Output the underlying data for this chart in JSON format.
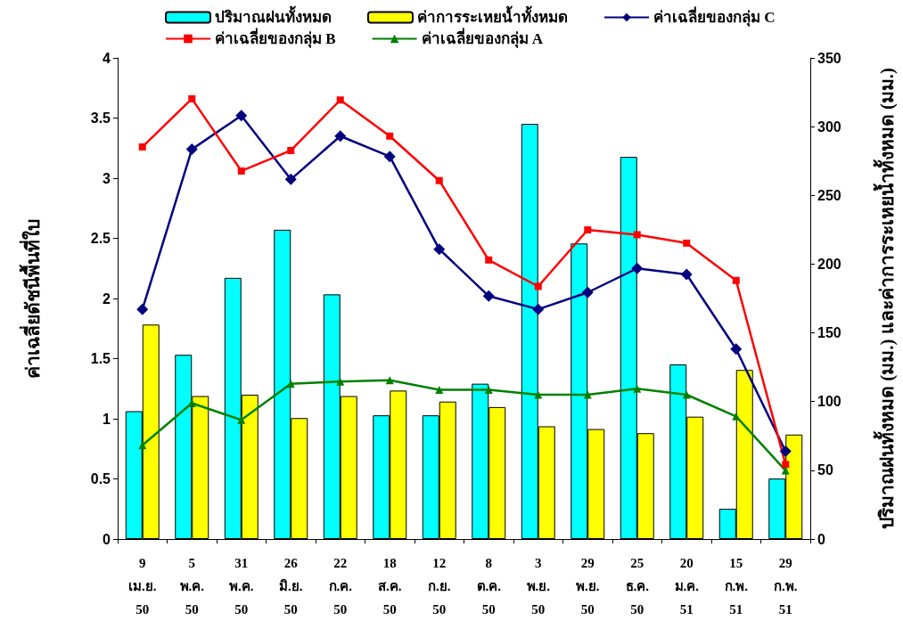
{
  "chart_data": {
    "type": "bar",
    "ylabel": "ค่าเฉลี่ยดัชนีพื้นที่ใบ",
    "y2label": "ปริมาณฝนทั้งหมด (มม.) และค่าการระเหยน้ำทั้งหมด (มม.)",
    "categories": [
      "9\nเม.ย.\n50",
      "5\nพ.ค.\n50",
      "31\nพ.ค.\n50",
      "26\nมิ.ย.\n50",
      "22\nก.ค.\n50",
      "18\nส.ค.\n50",
      "12\nก.ย.\n50",
      "8\nต.ค.\n50",
      "3\nพ.ย.\n50",
      "29\nพ.ย.\n50",
      "25\nธ.ค.\n50",
      "20\nม.ค.\n51",
      "15\nก.พ.\n51",
      "29\nก.พ.\n51"
    ],
    "series": [
      {
        "name": "ปริมาณฝนทั้งหมด",
        "axis": "y2",
        "color": "#00ffff",
        "values": [
          93,
          134,
          190,
          225,
          178,
          90,
          90,
          113,
          302,
          215,
          278,
          127,
          22,
          44
        ]
      },
      {
        "name": "ค่าการระเหยน้ำทั้งหมด",
        "axis": "y2",
        "color": "#ffff00",
        "values": [
          156,
          104,
          105,
          88,
          104,
          108,
          100,
          96,
          82,
          80,
          77,
          89,
          123,
          76
        ]
      },
      {
        "name": "ค่าเฉลี่ยของกลุ่ม C",
        "type": "line",
        "marker": "diamond",
        "color": "#000080",
        "values": [
          1.91,
          3.24,
          3.52,
          2.99,
          3.35,
          3.18,
          2.41,
          2.02,
          1.91,
          2.05,
          2.25,
          2.2,
          1.58,
          0.73
        ]
      },
      {
        "name": "ค่าเฉลี่ยของกลุ่ม B",
        "type": "line",
        "marker": "square",
        "color": "#ff0000",
        "values": [
          3.26,
          3.66,
          3.06,
          3.23,
          3.65,
          3.35,
          2.98,
          2.32,
          2.1,
          2.57,
          2.53,
          2.46,
          2.15,
          0.62
        ]
      },
      {
        "name": "ค่าเฉลี่ยของกลุ่ม A",
        "type": "line",
        "marker": "triangle",
        "color": "#008000",
        "values": [
          0.78,
          1.13,
          0.99,
          1.29,
          1.31,
          1.32,
          1.24,
          1.24,
          1.2,
          1.2,
          1.25,
          1.2,
          1.02,
          0.57
        ]
      }
    ],
    "ylim": [
      0,
      4
    ],
    "yticks": [
      0,
      0.5,
      1,
      1.5,
      2,
      2.5,
      3,
      3.5,
      4
    ],
    "y2lim": [
      0,
      350
    ],
    "y2ticks": [
      0,
      50,
      100,
      150,
      200,
      250,
      300,
      350
    ],
    "grid": false,
    "legend": "top"
  }
}
